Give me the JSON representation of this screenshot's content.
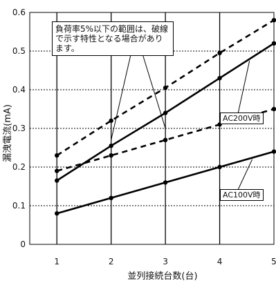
{
  "chart_data": {
    "type": "line",
    "x": [
      1,
      2,
      3,
      4,
      5
    ],
    "xlabel": "並列接続台数(台)",
    "ylabel": "漏洩電流(mA)",
    "xticks": [
      "1",
      "2",
      "3",
      "4",
      "5"
    ],
    "yticks": [
      "0",
      "0.1",
      "0.2",
      "0.3",
      "0.4",
      "0.5",
      "0.6"
    ],
    "xlim": [
      1,
      5
    ],
    "ylim": [
      0,
      0.6
    ],
    "grid": true,
    "series": [
      {
        "values": [
          0.165,
          0.255,
          0.34,
          0.43,
          0.52
        ],
        "style": "solid",
        "color": "#000000"
      },
      {
        "values": [
          0.23,
          0.32,
          0.405,
          0.495,
          0.58
        ],
        "style": "dashed",
        "color": "#000000"
      },
      {
        "values": [
          0.08,
          0.12,
          0.16,
          0.2,
          0.24
        ],
        "style": "solid",
        "color": "#000000"
      },
      {
        "values": [
          0.19,
          0.23,
          0.27,
          0.31,
          0.35
        ],
        "style": "dashed",
        "color": "#000000"
      }
    ],
    "annotations": {
      "note": "負荷率5%以下の範囲は、破線で示す特性となる場合があります。",
      "ac200": "AC200V時",
      "ac100": "AC100V時"
    }
  }
}
